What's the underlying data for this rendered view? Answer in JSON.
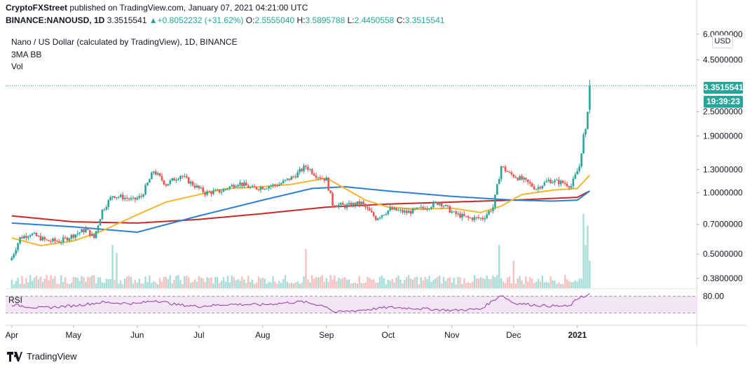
{
  "header": {
    "line1_author": "CryptoFXStreet",
    "line1_rest": "published on TradingView.com, January 07, 2021 04:21:00 UTC",
    "symbol": "BINANCE:NANOUSD, 1D",
    "last": "3.3515541",
    "change": "+0.8052232 (+31.62%)",
    "o_label": "O:",
    "o": "2.5555040",
    "h_label": "H:",
    "h": "3.5895788",
    "l_label": "L:",
    "l": "2.4450558",
    "c_label": "C:",
    "c": "3.3515541"
  },
  "overlay": {
    "title": "Nano / US Dollar (calculated by TradingView), 1D, BINANCE",
    "indicator": "3MA BB",
    "volume": "Vol"
  },
  "price_axis": {
    "currency": "USD",
    "last_price": "3.3515541",
    "countdown": "19:39:23"
  },
  "rsi": {
    "label": "RSI",
    "level": "80.00"
  },
  "footer": {
    "brand": "TradingView"
  },
  "colors": {
    "up": "#26a69a",
    "down": "#ef5350",
    "ma_fast": "#f7b52c",
    "ma_mid": "#2a7fd4",
    "ma_slow": "#c62828",
    "rsi_line": "#8e3a9e",
    "rsi_band": "#f3e5f5"
  },
  "chart_data": {
    "type": "candlestick",
    "scale": "log",
    "y_ticks": [
      6.0,
      4.5,
      2.5,
      1.9,
      1.3,
      1.0,
      0.7,
      0.5,
      0.38
    ],
    "y_tick_labels": [
      "6.0000000",
      "4.5000000",
      "2.5000000",
      "1.9000000",
      "1.3000000",
      "1.0000000",
      "0.7000000",
      "0.5000000",
      "0.3800000"
    ],
    "x_labels": [
      "Apr",
      "May",
      "Jun",
      "Jul",
      "Aug",
      "Sep",
      "Oct",
      "Nov",
      "Dec",
      "2021"
    ],
    "x_label_dates": [
      "2020-04-01",
      "2020-05-01",
      "2020-06-01",
      "2020-07-01",
      "2020-08-01",
      "2020-09-01",
      "2020-10-01",
      "2020-11-01",
      "2020-12-01",
      "2021-01-01"
    ],
    "close_anchors": [
      [
        "2020-04-01",
        0.48
      ],
      [
        "2020-04-05",
        0.6
      ],
      [
        "2020-04-10",
        0.63
      ],
      [
        "2020-04-18",
        0.58
      ],
      [
        "2020-04-25",
        0.58
      ],
      [
        "2020-05-01",
        0.62
      ],
      [
        "2020-05-07",
        0.66
      ],
      [
        "2020-05-11",
        0.6
      ],
      [
        "2020-05-15",
        0.82
      ],
      [
        "2020-05-20",
        0.97
      ],
      [
        "2020-05-25",
        0.95
      ],
      [
        "2020-05-30",
        0.92
      ],
      [
        "2020-06-03",
        0.96
      ],
      [
        "2020-06-09",
        1.28
      ],
      [
        "2020-06-15",
        1.1
      ],
      [
        "2020-06-22",
        1.22
      ],
      [
        "2020-06-28",
        1.1
      ],
      [
        "2020-07-04",
        1.0
      ],
      [
        "2020-07-12",
        1.02
      ],
      [
        "2020-07-20",
        1.12
      ],
      [
        "2020-07-27",
        1.05
      ],
      [
        "2020-08-02",
        1.07
      ],
      [
        "2020-08-09",
        1.1
      ],
      [
        "2020-08-16",
        1.2
      ],
      [
        "2020-08-22",
        1.35
      ],
      [
        "2020-08-27",
        1.22
      ],
      [
        "2020-09-01",
        1.16
      ],
      [
        "2020-09-04",
        0.88
      ],
      [
        "2020-09-10",
        0.86
      ],
      [
        "2020-09-18",
        0.89
      ],
      [
        "2020-09-25",
        0.75
      ],
      [
        "2020-10-02",
        0.83
      ],
      [
        "2020-10-10",
        0.8
      ],
      [
        "2020-10-18",
        0.84
      ],
      [
        "2020-10-26",
        0.9
      ],
      [
        "2020-11-02",
        0.79
      ],
      [
        "2020-11-09",
        0.75
      ],
      [
        "2020-11-16",
        0.75
      ],
      [
        "2020-11-21",
        0.85
      ],
      [
        "2020-11-25",
        1.35
      ],
      [
        "2020-11-29",
        1.24
      ],
      [
        "2020-12-06",
        1.15
      ],
      [
        "2020-12-12",
        1.05
      ],
      [
        "2020-12-18",
        1.15
      ],
      [
        "2020-12-25",
        1.12
      ],
      [
        "2020-12-29",
        1.08
      ],
      [
        "2021-01-02",
        1.35
      ],
      [
        "2021-01-04",
        1.9
      ],
      [
        "2021-01-05",
        2.0
      ],
      [
        "2021-01-06",
        2.56
      ],
      [
        "2021-01-07",
        3.35
      ]
    ],
    "ma_fast_anchors": [
      [
        "2020-04-01",
        0.6
      ],
      [
        "2020-04-15",
        0.55
      ],
      [
        "2020-05-01",
        0.58
      ],
      [
        "2020-05-15",
        0.65
      ],
      [
        "2020-06-01",
        0.78
      ],
      [
        "2020-06-15",
        0.9
      ],
      [
        "2020-07-01",
        0.98
      ],
      [
        "2020-07-15",
        1.05
      ],
      [
        "2020-08-01",
        1.07
      ],
      [
        "2020-08-15",
        1.1
      ],
      [
        "2020-09-01",
        1.18
      ],
      [
        "2020-09-10",
        1.05
      ],
      [
        "2020-09-20",
        0.92
      ],
      [
        "2020-10-01",
        0.85
      ],
      [
        "2020-10-15",
        0.83
      ],
      [
        "2020-11-01",
        0.84
      ],
      [
        "2020-11-15",
        0.8
      ],
      [
        "2020-11-25",
        0.86
      ],
      [
        "2020-12-05",
        0.98
      ],
      [
        "2020-12-20",
        1.03
      ],
      [
        "2021-01-01",
        1.05
      ],
      [
        "2021-01-07",
        1.22
      ]
    ],
    "ma_mid_anchors": [
      [
        "2020-04-01",
        0.71
      ],
      [
        "2020-05-01",
        0.68
      ],
      [
        "2020-06-01",
        0.64
      ],
      [
        "2020-07-01",
        0.77
      ],
      [
        "2020-08-01",
        0.92
      ],
      [
        "2020-08-25",
        1.05
      ],
      [
        "2020-09-10",
        1.07
      ],
      [
        "2020-10-01",
        1.02
      ],
      [
        "2020-11-01",
        0.96
      ],
      [
        "2020-12-01",
        0.92
      ],
      [
        "2020-12-20",
        0.91
      ],
      [
        "2021-01-01",
        0.92
      ],
      [
        "2021-01-07",
        1.02
      ]
    ],
    "ma_slow_anchors": [
      [
        "2020-04-01",
        0.77
      ],
      [
        "2020-05-01",
        0.72
      ],
      [
        "2020-06-01",
        0.71
      ],
      [
        "2020-07-01",
        0.74
      ],
      [
        "2020-08-01",
        0.79
      ],
      [
        "2020-09-01",
        0.85
      ],
      [
        "2020-10-01",
        0.88
      ],
      [
        "2020-11-01",
        0.9
      ],
      [
        "2020-12-01",
        0.92
      ],
      [
        "2021-01-01",
        0.95
      ],
      [
        "2021-01-07",
        1.02
      ]
    ],
    "volume_spikes": [
      [
        "2020-05-20",
        0.55
      ],
      [
        "2020-05-22",
        0.45
      ],
      [
        "2020-08-22",
        0.5
      ],
      [
        "2020-11-24",
        0.55
      ],
      [
        "2020-12-01",
        0.35
      ],
      [
        "2021-01-04",
        0.95
      ],
      [
        "2021-01-05",
        0.55
      ],
      [
        "2021-01-06",
        0.8
      ],
      [
        "2021-01-07",
        0.35
      ]
    ],
    "rsi_level_lines": [
      80,
      30
    ],
    "rsi_anchors": [
      [
        "2020-04-01",
        55
      ],
      [
        "2020-04-15",
        45
      ],
      [
        "2020-05-01",
        52
      ],
      [
        "2020-05-15",
        62
      ],
      [
        "2020-06-01",
        58
      ],
      [
        "2020-06-10",
        68
      ],
      [
        "2020-06-20",
        55
      ],
      [
        "2020-07-01",
        50
      ],
      [
        "2020-07-15",
        56
      ],
      [
        "2020-08-01",
        55
      ],
      [
        "2020-08-20",
        64
      ],
      [
        "2020-09-01",
        50
      ],
      [
        "2020-09-05",
        32
      ],
      [
        "2020-09-20",
        40
      ],
      [
        "2020-10-01",
        47
      ],
      [
        "2020-10-15",
        44
      ],
      [
        "2020-11-01",
        38
      ],
      [
        "2020-11-15",
        42
      ],
      [
        "2020-11-25",
        84
      ],
      [
        "2020-12-01",
        60
      ],
      [
        "2020-12-15",
        52
      ],
      [
        "2020-12-28",
        50
      ],
      [
        "2021-01-03",
        82
      ],
      [
        "2021-01-05",
        78
      ],
      [
        "2021-01-07",
        88
      ]
    ]
  }
}
